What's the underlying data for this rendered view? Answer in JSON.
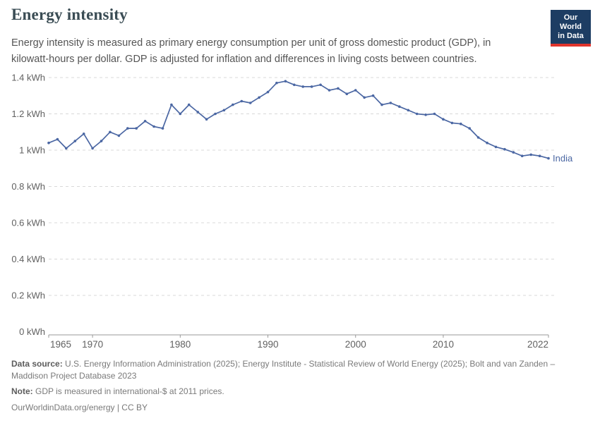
{
  "header": {
    "title": "Energy intensity",
    "subtitle": "Energy intensity is measured as primary energy consumption per unit of gross domestic product (GDP), in kilowatt-hours per dollar. GDP is adjusted for inflation and differences in living costs between countries.",
    "logo": {
      "line1": "Our World",
      "line2": "in Data",
      "bg_color": "#1d3d63",
      "accent_color": "#e0342c"
    }
  },
  "chart_data": {
    "type": "line",
    "title": "Energy intensity",
    "unit": "kWh per dollar",
    "xlabel": "",
    "ylabel": "",
    "xlim": [
      1965,
      2022
    ],
    "ylim": [
      0,
      1.4
    ],
    "grid": "horizontal-dashed",
    "legend_position": "end-of-line-label",
    "x_ticks": [
      {
        "year": 1965,
        "label": "1965"
      },
      {
        "year": 1970,
        "label": "1970"
      },
      {
        "year": 1980,
        "label": "1980"
      },
      {
        "year": 1990,
        "label": "1990"
      },
      {
        "year": 2000,
        "label": "2000"
      },
      {
        "year": 2010,
        "label": "2010"
      },
      {
        "year": 2022,
        "label": "2022"
      }
    ],
    "y_ticks": [
      {
        "value": 0,
        "label": "0 kWh"
      },
      {
        "value": 0.2,
        "label": "0.2 kWh"
      },
      {
        "value": 0.4,
        "label": "0.4 kWh"
      },
      {
        "value": 0.6,
        "label": "0.6 kWh"
      },
      {
        "value": 0.8,
        "label": "0.8 kWh"
      },
      {
        "value": 1,
        "label": "1 kWh"
      },
      {
        "value": 1.2,
        "label": "1.2 kWh"
      },
      {
        "value": 1.4,
        "label": "1.4 kWh"
      }
    ],
    "series": [
      {
        "name": "India",
        "color": "#4b67a3",
        "x": [
          1965,
          1966,
          1967,
          1968,
          1969,
          1970,
          1971,
          1972,
          1973,
          1974,
          1975,
          1976,
          1977,
          1978,
          1979,
          1980,
          1981,
          1982,
          1983,
          1984,
          1985,
          1986,
          1987,
          1988,
          1989,
          1990,
          1991,
          1992,
          1993,
          1994,
          1995,
          1996,
          1997,
          1998,
          1999,
          2000,
          2001,
          2002,
          2003,
          2004,
          2005,
          2006,
          2007,
          2008,
          2009,
          2010,
          2011,
          2012,
          2013,
          2014,
          2015,
          2016,
          2017,
          2018,
          2019,
          2020,
          2021,
          2022
        ],
        "values": [
          1.04,
          1.06,
          1.01,
          1.05,
          1.09,
          1.01,
          1.05,
          1.1,
          1.08,
          1.12,
          1.12,
          1.16,
          1.13,
          1.12,
          1.25,
          1.2,
          1.25,
          1.21,
          1.17,
          1.2,
          1.22,
          1.25,
          1.27,
          1.26,
          1.29,
          1.32,
          1.37,
          1.38,
          1.36,
          1.35,
          1.35,
          1.36,
          1.33,
          1.34,
          1.31,
          1.33,
          1.29,
          1.3,
          1.25,
          1.26,
          1.24,
          1.22,
          1.2,
          1.195,
          1.2,
          1.17,
          1.15,
          1.145,
          1.12,
          1.07,
          1.04,
          1.018,
          1.005,
          0.988,
          0.968,
          0.975,
          0.968,
          0.955
        ]
      }
    ],
    "axis_color": "#999999",
    "grid_color": "#d8d8d8",
    "tick_label_color": "#616161"
  },
  "footer": {
    "data_source_label": "Data source:",
    "data_source_text": "U.S. Energy Information Administration (2025); Energy Institute - Statistical Review of World Energy (2025); Bolt and van Zanden – Maddison Project Database 2023",
    "note_label": "Note:",
    "note_text": "GDP is measured in international-$ at 2011 prices.",
    "license": "OurWorldinData.org/energy | CC BY"
  }
}
